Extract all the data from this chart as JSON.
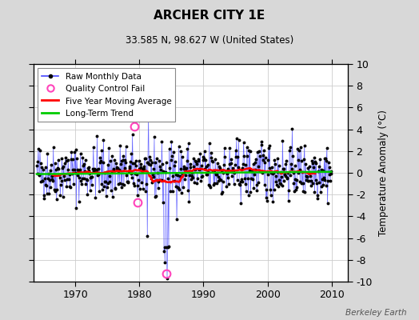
{
  "title": "ARCHER CITY 1E",
  "subtitle": "33.585 N, 98.627 W (United States)",
  "ylabel": "Temperature Anomaly (°C)",
  "watermark": "Berkeley Earth",
  "xlim": [
    1963.5,
    2012.5
  ],
  "ylim": [
    -10,
    10
  ],
  "yticks": [
    -10,
    -8,
    -6,
    -4,
    -2,
    0,
    2,
    4,
    6,
    8,
    10
  ],
  "xticks": [
    1970,
    1980,
    1990,
    2000,
    2010
  ],
  "bg_color": "#d8d8d8",
  "plot_bg_color": "#ffffff",
  "raw_line_color": "#4444ff",
  "raw_marker_color": "#000000",
  "moving_avg_color": "#ff0000",
  "trend_color": "#00cc00",
  "qc_fail_color": "#ff44bb",
  "legend_entries": [
    "Raw Monthly Data",
    "Quality Control Fail",
    "Five Year Moving Average",
    "Long-Term Trend"
  ],
  "seed": 42,
  "n_points": 552,
  "start_year": 1964.0,
  "qc_fail_points": [
    [
      1979.25,
      4.3
    ],
    [
      1979.75,
      -2.7
    ],
    [
      1984.25,
      -9.3
    ]
  ]
}
